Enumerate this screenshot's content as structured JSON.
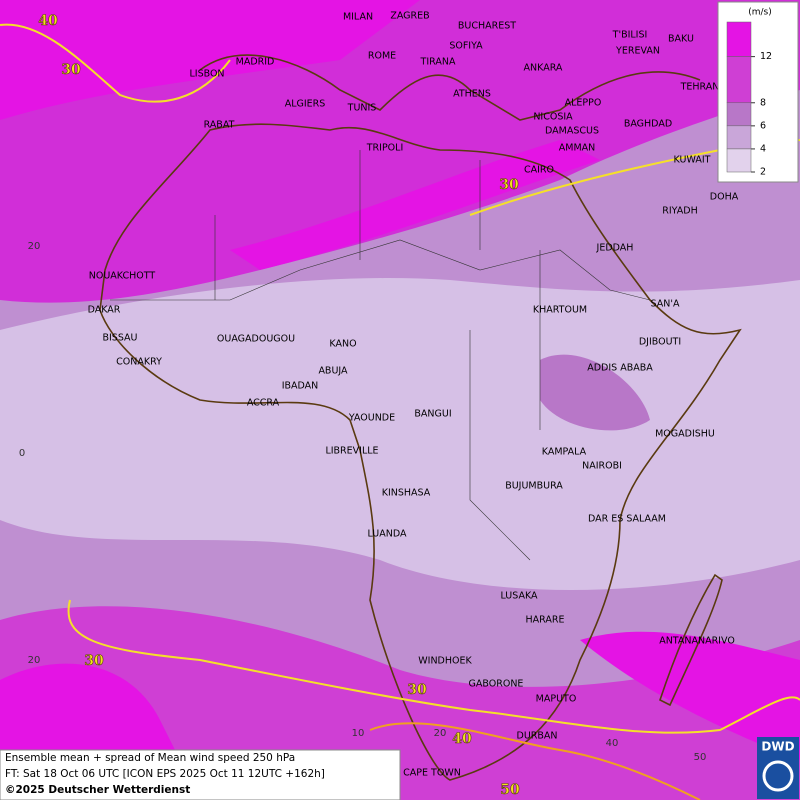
{
  "map": {
    "cities": [
      "MILAN",
      "ZAGREB",
      "BUCHAREST",
      "T'BILISI",
      "BAKU",
      "LISBON",
      "MADRID",
      "ROME",
      "SOFIYA",
      "YEREVAN",
      "TEHRAN",
      "TIRANA",
      "ANKARA",
      "ALGIERS",
      "TUNIS",
      "ATHENS",
      "ALEPPO",
      "RABAT",
      "NICOSIA",
      "BAGHDAD",
      "DAMASCUS",
      "TRIPOLI",
      "AMMAN",
      "KUWAIT",
      "CAIRO",
      "DOHA",
      "RIYADH",
      "JEDDAH",
      "NOUAKCHOTT",
      "SAN'A",
      "DAKAR",
      "KHARTOUM",
      "BISSAU",
      "OUAGADOUGOU",
      "KANO",
      "DJIBOUTI",
      "CONAKRY",
      "ABUJA",
      "ADDIS ABABA",
      "IBADAN",
      "ACCRA",
      "YAOUNDE",
      "BANGUI",
      "MOGADISHU",
      "KAMPALA",
      "LIBREVILLE",
      "NAIROBI",
      "BUJUMBURA",
      "KINSHASA",
      "DAR ES SALAAM",
      "LUANDA",
      "LUSAKA",
      "HARARE",
      "ANTANANARIVO",
      "WINDHOEK",
      "GABORONE",
      "MAPUTO",
      "DURBAN",
      "CAPE TOWN"
    ],
    "contour_labels": [
      "40",
      "30",
      "30",
      "30",
      "30",
      "40",
      "50"
    ],
    "lat_labels": [
      "20",
      "0",
      "20"
    ],
    "lon_labels": [
      "10",
      "20",
      "40",
      "50"
    ],
    "legend": {
      "unit": "(m/s)",
      "ticks": [
        12,
        8,
        6,
        4,
        2
      ],
      "colors": [
        "#e414e4",
        "#cf3fd4",
        "#b877c8",
        "#c9a6d9",
        "#e2d2ec"
      ]
    },
    "caption": [
      "Ensemble mean + spread of Mean wind speed 250 hPa",
      "FT: Sat 18 Oct 06 UTC [ICON EPS 2025 Oct 11 12UTC +162h]",
      "©2025 Deutscher Wetterdienst"
    ],
    "logo": "DWD"
  }
}
